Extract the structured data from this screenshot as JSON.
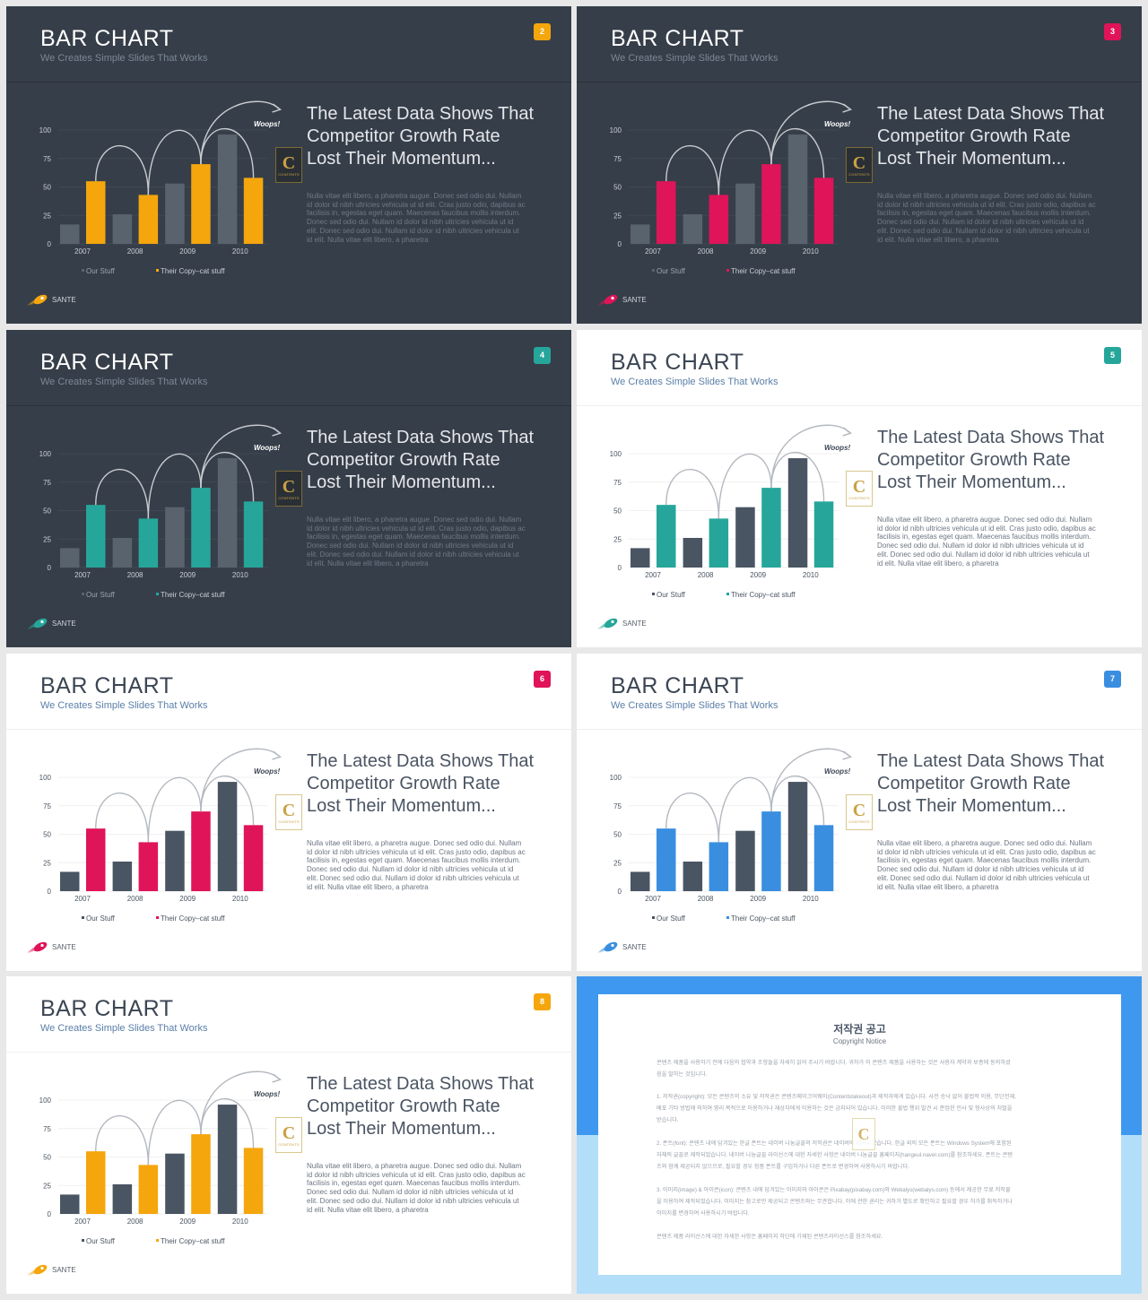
{
  "slides": [
    {
      "theme": "dark",
      "accent": "#f5a60d",
      "badge": "2",
      "title": "BAR CHART",
      "subtitle": "We Creates Simple Slides That Works",
      "heading": [
        "The Latest Data Shows That",
        "Competitor Growth Rate",
        "Lost Their Momentum..."
      ],
      "body": [
        "Nulla vitae elit libero, a pharetra augue. Donec sed odio dui. Nullam",
        "id dolor id nibh ultricies vehicula ut id elit. Cras justo odio, dapibus ac",
        "facilisis in, egestas eget quam. Maecenas faucibus mollis interdum.",
        "Donec sed odio dui. Nullam id dolor id nibh ultricies vehicula ut id",
        "elit. Donec sed odio dui. Nullam id dolor id nibh ultricies vehicula ut",
        "id elit. Nulla vitae elit libero, a pharetra"
      ],
      "brand": "SANTE",
      "logo_text": "C",
      "logo_caption": "CONTENTS"
    },
    {
      "theme": "dark",
      "accent": "#df1459",
      "badge": "3",
      "title": "BAR CHART",
      "subtitle": "We Creates Simple Slides That Works",
      "heading": [
        "The Latest Data Shows That",
        "Competitor Growth Rate",
        "Lost Their Momentum..."
      ],
      "body": [
        "Nulla vitae elit libero, a pharetra augue. Donec sed odio dui. Nullam",
        "id dolor id nibh ultricies vehicula ut id elit. Cras justo odio, dapibus ac",
        "facilisis in, egestas eget quam. Maecenas faucibus mollis interdum.",
        "Donec sed odio dui. Nullam id dolor id nibh ultricies vehicula ut id",
        "elit. Donec sed odio dui. Nullam id dolor id nibh ultricies vehicula ut",
        "id elit. Nulla vitae elit libero, a pharetra"
      ],
      "brand": "SANTE",
      "logo_text": "C",
      "logo_caption": "CONTENTS"
    },
    {
      "theme": "dark",
      "accent": "#26a69a",
      "badge": "4",
      "title": "BAR CHART",
      "subtitle": "We Creates Simple Slides That Works",
      "heading": [
        "The Latest Data Shows That",
        "Competitor Growth Rate",
        "Lost Their Momentum..."
      ],
      "body": [
        "Nulla vitae elit libero, a pharetra augue. Donec sed odio dui. Nullam",
        "id dolor id nibh ultricies vehicula ut id elit. Cras justo odio, dapibus ac",
        "facilisis in, egestas eget quam. Maecenas faucibus mollis interdum.",
        "Donec sed odio dui. Nullam id dolor id nibh ultricies vehicula ut id",
        "elit. Donec sed odio dui. Nullam id dolor id nibh ultricies vehicula ut",
        "id elit. Nulla vitae elit libero, a pharetra"
      ],
      "brand": "SANTE",
      "logo_text": "C",
      "logo_caption": "CONTENTS"
    },
    {
      "theme": "light",
      "accent": "#26a69a",
      "badge": "5",
      "title": "BAR CHART",
      "subtitle": "We Creates Simple Slides That Works",
      "heading": [
        "The Latest Data Shows That",
        "Competitor Growth Rate",
        "Lost Their Momentum..."
      ],
      "body": [
        "Nulla vitae elit libero, a pharetra augue. Donec sed odio dui. Nullam",
        "id dolor id nibh ultricies vehicula ut id elit. Cras justo odio, dapibus ac",
        "facilisis in, egestas eget quam. Maecenas faucibus mollis interdum.",
        "Donec sed odio dui. Nullam id dolor id nibh ultricies vehicula ut id",
        "elit. Donec sed odio dui. Nullam id dolor id nibh ultricies vehicula ut",
        "id elit. Nulla vitae elit libero, a pharetra"
      ],
      "brand": "SANTE",
      "logo_text": "C",
      "logo_caption": "CONTENTS"
    },
    {
      "theme": "light",
      "accent": "#df1459",
      "badge": "6",
      "title": "BAR CHART",
      "subtitle": "We Creates Simple Slides That Works",
      "heading": [
        "The Latest Data Shows That",
        "Competitor Growth Rate",
        "Lost Their Momentum..."
      ],
      "body": [
        "Nulla vitae elit libero, a pharetra augue. Donec sed odio dui. Nullam",
        "id dolor id nibh ultricies vehicula ut id elit. Cras justo odio, dapibus ac",
        "facilisis in, egestas eget quam. Maecenas faucibus mollis interdum.",
        "Donec sed odio dui. Nullam id dolor id nibh ultricies vehicula ut id",
        "elit. Donec sed odio dui. Nullam id dolor id nibh ultricies vehicula ut",
        "id elit. Nulla vitae elit libero, a pharetra"
      ],
      "brand": "SANTE",
      "logo_text": "C",
      "logo_caption": "CONTENTS"
    },
    {
      "theme": "light",
      "accent": "#3a8ee0",
      "badge": "7",
      "title": "BAR CHART",
      "subtitle": "We Creates Simple Slides That Works",
      "heading": [
        "The Latest Data Shows That",
        "Competitor Growth Rate",
        "Lost Their Momentum..."
      ],
      "body": [
        "Nulla vitae elit libero, a pharetra augue. Donec sed odio dui. Nullam",
        "id dolor id nibh ultricies vehicula ut id elit. Cras justo odio, dapibus ac",
        "facilisis in, egestas eget quam. Maecenas faucibus mollis interdum.",
        "Donec sed odio dui. Nullam id dolor id nibh ultricies vehicula ut id",
        "elit. Donec sed odio dui. Nullam id dolor id nibh ultricies vehicula ut",
        "id elit. Nulla vitae elit libero, a pharetra"
      ],
      "brand": "SANTE",
      "logo_text": "C",
      "logo_caption": "CONTENTS"
    },
    {
      "theme": "light",
      "accent": "#f5a60d",
      "badge": "8",
      "title": "BAR CHART",
      "subtitle": "We Creates Simple Slides That Works",
      "heading": [
        "The Latest Data Shows That",
        "Competitor Growth Rate",
        "Lost Their Momentum..."
      ],
      "body": [
        "Nulla vitae elit libero, a pharetra augue. Donec sed odio dui. Nullam",
        "id dolor id nibh ultricies vehicula ut id elit. Cras justo odio, dapibus ac",
        "facilisis in, egestas eget quam. Maecenas faucibus mollis interdum.",
        "Donec sed odio dui. Nullam id dolor id nibh ultricies vehicula ut id",
        "elit. Donec sed odio dui. Nullam id dolor id nibh ultricies vehicula ut",
        "id elit. Nulla vitae elit libero, a pharetra"
      ],
      "brand": "SANTE",
      "logo_text": "C",
      "logo_caption": "CONTENTS"
    }
  ],
  "chart_data": {
    "type": "bar",
    "categories": [
      "2007",
      "2008",
      "2009",
      "2010"
    ],
    "series": [
      {
        "name": "Our Stuff",
        "values": [
          17,
          26,
          53,
          96
        ]
      },
      {
        "name": "Their Copy–cat stuff",
        "values": [
          55,
          43,
          70,
          58
        ]
      }
    ],
    "yticks": [
      "0",
      "25",
      "50",
      "75",
      "100"
    ],
    "ylim": [
      0,
      100
    ],
    "annotation": "Woops!",
    "grid": true,
    "legend": "bottom",
    "colors": {
      "our_dark": "#59636e",
      "our_light": "#4a5563"
    }
  },
  "copyright": {
    "title": "저작권 공고",
    "subtitle": "Copyright Notice",
    "lines": [
      "콘텐츠 제품을 사용하기 전에 다음의 협약과 조항들을 자세히 읽어 주시기 바랍니다. 귀하가 이 콘텐츠 제품을 사용하는 것은 사용자 계약과 보증에 동의하셨",
      "음을 말하는 것입니다.",
      "1. 저작권(copyright): 모든 콘텐츠의 소유 및 저작권은 콘텐츠메이크어웨이(Contentstakeout)과 제작자에게 있습니다. 사전 승낙 없이 불법적 이용, 무단전재,",
      "배포 기타 방법에 의하여 영리 목적으로 이용하거나 재상자에게 이용하는 것은 금지되어 있습니다. 이러한 불법 행위 발견 시 준엄한 민사 및 형사상의 처벌을",
      "받습니다.",
      "2. 폰트(font): 콘텐츠 내에 담겨있는 한글 폰트는 네이버 나눔글꼴의 저작권은 네이버에 제작되었습니다. 한글 외의 모든 폰트는 Windows System에 포함된",
      "자체의 글꼴로 제작되었습니다. 네이버 나눔글꼴 라이선스에 대한 자세한 사항은 네이버 나눔글꼴 홈페이지(hangeul.naver.com)를 참조하세요. 폰트는 콘텐",
      "츠와 함께 제공되지 않으므로, 필요할 경우 정품 폰트를 구입하거나 다른 폰트로 변경하여 사용하시기 바랍니다.",
      "3. 이미지(image) & 아이콘(icon): 콘텐츠 내에 담겨있는 이미지와 아이콘은 Pixabay(pixabay.com)와 Webalys(webalys.com) 등에서 제공한 무료 저작물",
      "을 이용하여 제작되었습니다. 이미지는 참고로만 제공되고 콘텐츠와는 무관합니다. 이에 관한 권리는 귀하가 별도로 확인하고 필요할 경우 허가를 취득하거나",
      "이미지를 변경하여 사용하시기 바랍니다.",
      "콘텐츠 제품 라이선스에 대한 자세한 사항은 홈페이지 하단에 기재된 콘텐츠라이선스를 참조하세요."
    ],
    "watermark": "C"
  }
}
